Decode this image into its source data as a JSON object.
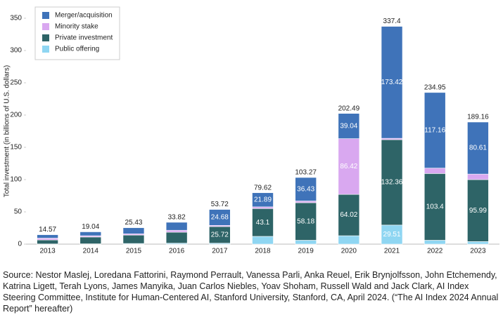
{
  "chart_data": {
    "type": "stacked_bar",
    "ylabel": "Total investment (in billions of U.S. dollars)",
    "categories": [
      "2013",
      "2014",
      "2015",
      "2016",
      "2017",
      "2018",
      "2019",
      "2020",
      "2021",
      "2022",
      "2023"
    ],
    "series": [
      {
        "name": "Public offering",
        "color": "#8fd6f2",
        "values": [
          0.3,
          0.5,
          1,
          1.5,
          1.5,
          12,
          6,
          13.01,
          29.51,
          6,
          4
        ],
        "value_labels": [
          null,
          null,
          null,
          null,
          null,
          null,
          null,
          null,
          "29.51",
          null,
          null
        ]
      },
      {
        "name": "Private investment",
        "color": "#2e6467",
        "values": [
          6.2,
          10.5,
          13,
          17,
          25.72,
          43.1,
          58.18,
          64.02,
          132.36,
          103.4,
          95.99
        ],
        "value_labels": [
          null,
          null,
          null,
          null,
          "25.72",
          "43.1",
          "58.18",
          "64.02",
          "132.36",
          "103.4",
          "95.99"
        ]
      },
      {
        "name": "Minority stake",
        "color": "#d9a8f0",
        "values": [
          2.8,
          2,
          2,
          3,
          1.82,
          2.63,
          2.66,
          86.42,
          2.11,
          8.39,
          8.56
        ],
        "value_labels": [
          null,
          null,
          null,
          null,
          null,
          null,
          null,
          "86.42",
          null,
          null,
          null
        ]
      },
      {
        "name": "Merger/acquisition",
        "color": "#3f73b9",
        "values": [
          5.27,
          6.04,
          9.43,
          12.32,
          24.68,
          21.89,
          36.43,
          39.04,
          173.42,
          117.16,
          80.61
        ],
        "value_labels": [
          null,
          null,
          null,
          null,
          "24.68",
          "21.89",
          "36.43",
          "39.04",
          "173.42",
          "117.16",
          "80.61"
        ]
      }
    ],
    "totals": [
      14.57,
      19.04,
      25.43,
      33.82,
      53.72,
      79.62,
      103.27,
      202.49,
      337.4,
      234.95,
      189.16
    ],
    "ylim": [
      0,
      350
    ],
    "yticks": [
      0,
      50,
      100,
      150,
      200,
      250,
      300,
      350
    ],
    "grid": false,
    "legend": "upper left"
  },
  "source": "Source: Nestor Maslej, Loredana Fattorini, Raymond Perrault, Vanessa Parli, Anka Reuel, Erik Brynjolfsson, John Etchemendy, Katrina Ligett, Terah Lyons, James Manyika, Juan Carlos Niebles, Yoav Shoham, Russell Wald and Jack Clark, AI Index Steering Committee, Institute for Human-Centered AI, Stanford University, Stanford, CA, April 2024. (“The AI Index 2024 Annual Report” hereafter)"
}
